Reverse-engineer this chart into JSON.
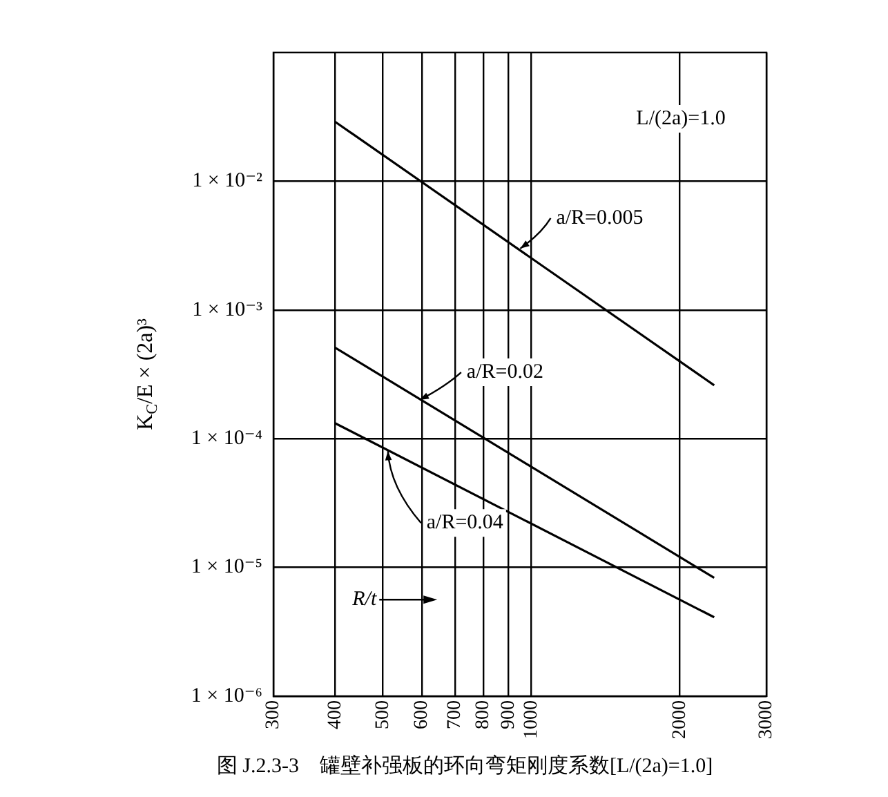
{
  "chart_data": {
    "type": "line",
    "title": "图 J.2.3-3　罐壁补强板的环向弯矩刚度系数[L/(2a)=1.0]",
    "xlabel": "R/t",
    "ylabel": "K$_{C}$/E × (2a)³",
    "log": "xy",
    "grid": true,
    "legend": false,
    "marker": "none",
    "line_style": "solid",
    "xlim": [
      300,
      3000
    ],
    "xticks": [
      300,
      400,
      500,
      600,
      700,
      800,
      900,
      1000,
      2000,
      3000
    ],
    "ylim": [
      1e-06,
      0.1
    ],
    "yticks": [
      {
        "value": 1e-06,
        "label": "1 × 10⁻⁶"
      },
      {
        "value": 1e-05,
        "label": "1 × 10⁻⁵"
      },
      {
        "value": 0.0001,
        "label": "1 × 10⁻⁴"
      },
      {
        "value": 0.001,
        "label": "1 × 10⁻³"
      },
      {
        "value": 0.01,
        "label": "1 × 10⁻²"
      }
    ],
    "x": [
      400,
      2350
    ],
    "series": [
      {
        "color": "#000000",
        "values": [
          0.029,
          0.00026
        ]
      },
      {
        "color": "#000000",
        "values": [
          0.00051,
          8.3e-06
        ]
      },
      {
        "color": "#000000",
        "values": [
          0.000132,
          4.1e-06
        ]
      }
    ],
    "annotations": [
      "L/(2a)=1.0",
      {
        "text": "a/R=0.005",
        "x": 950,
        "y": 0.003
      },
      {
        "text": "a/R=0.02",
        "x": 594,
        "y": 0.0002
      },
      {
        "text": "a/R=0.04",
        "x": 512,
        "y": 8e-05
      }
    ]
  }
}
